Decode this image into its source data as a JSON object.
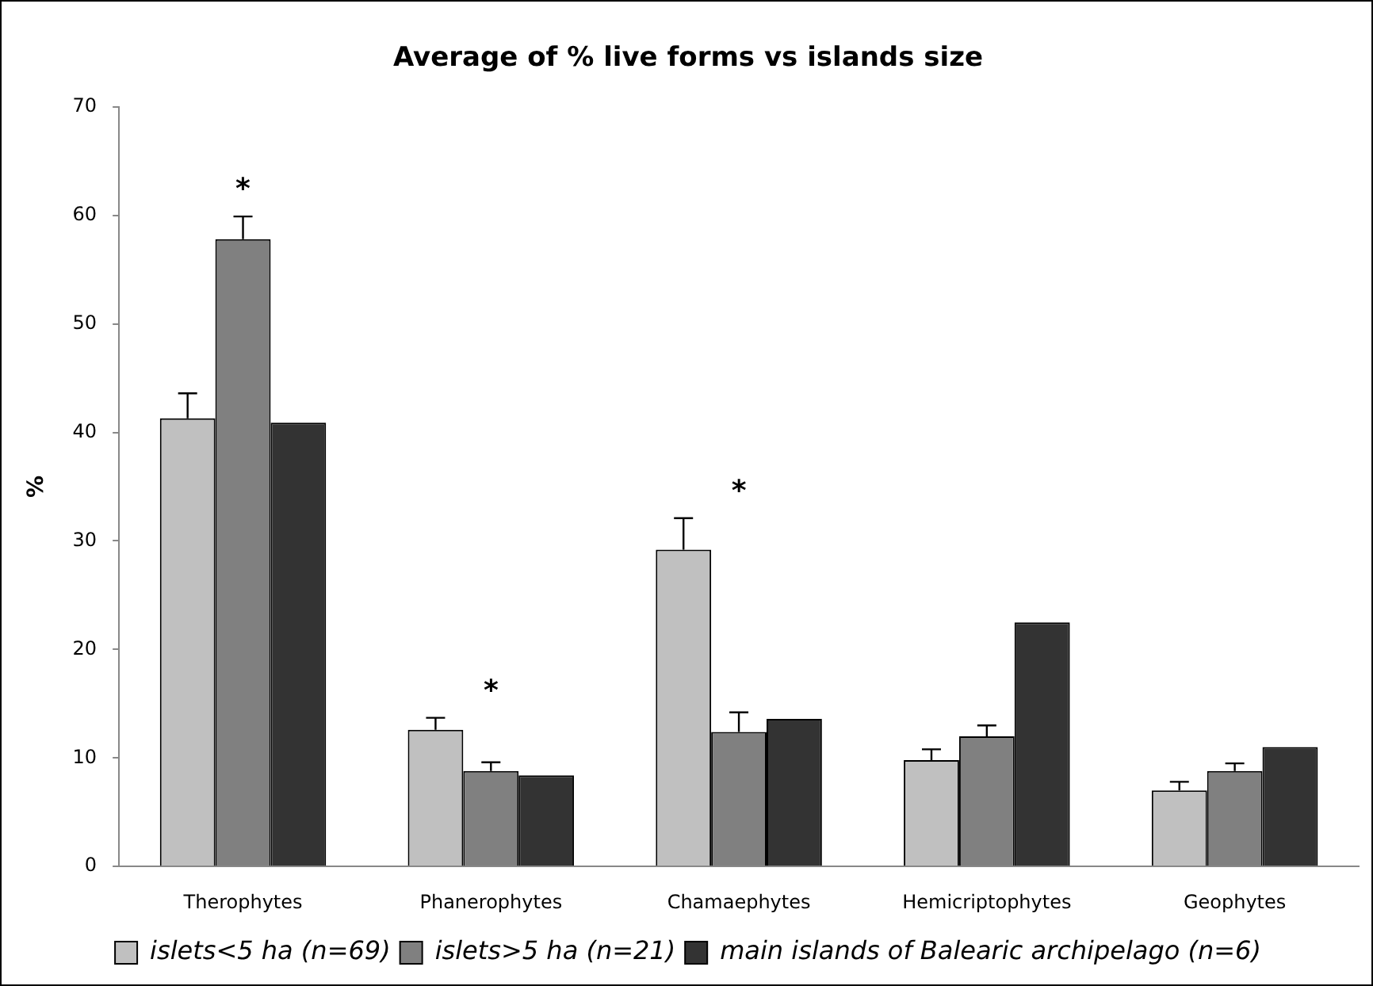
{
  "chart_data": {
    "type": "bar",
    "title": "Average of % live forms vs islands size",
    "ylabel": "%",
    "categories": [
      "Therophytes",
      "Phanerophytes",
      "Chamaephytes",
      "Hemicriptophytes",
      "Geophytes"
    ],
    "series": [
      {
        "name": "islets<5 ha (n=69)",
        "color": "#c0c0c0",
        "values": [
          41.3,
          12.6,
          29.2,
          9.8,
          7.0
        ],
        "errors": [
          [
            41.3,
            43.6
          ],
          [
            12.6,
            13.7
          ],
          [
            29.2,
            32.1
          ],
          [
            9.8,
            10.8
          ],
          [
            7.0,
            7.8
          ]
        ]
      },
      {
        "name": "islets>5 ha (n=21)",
        "color": "#808080",
        "values": [
          57.8,
          8.8,
          12.4,
          12.0,
          8.8
        ],
        "errors": [
          [
            57.8,
            59.9
          ],
          [
            8.8,
            9.6
          ],
          [
            12.4,
            14.2
          ],
          [
            12.0,
            13.0
          ],
          [
            8.8,
            9.5
          ]
        ]
      },
      {
        "name": "main islands of Balearic archipelago (n=6)",
        "color": "#333333",
        "values": [
          40.9,
          8.4,
          13.6,
          22.5,
          11.0
        ]
      }
    ],
    "ylim": [
      0,
      70
    ],
    "yticks": [
      0,
      10,
      20,
      30,
      40,
      50,
      60,
      70
    ],
    "grid": false,
    "legend": "bottom",
    "annotations": [
      "*",
      "*",
      "*"
    ]
  }
}
